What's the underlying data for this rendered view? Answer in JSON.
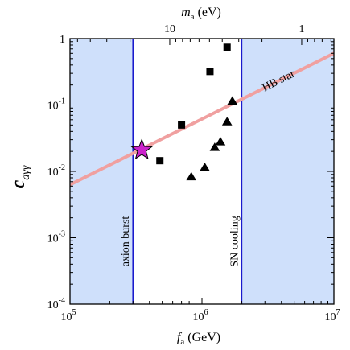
{
  "chart_data": {
    "type": "scatter",
    "x_axis": {
      "label_italic": "f",
      "label_sub": "a",
      "label_unit": " (GeV)",
      "scale": "log",
      "range": [
        100000,
        10000000
      ],
      "ticks": [
        {
          "value": 100000,
          "base": "10",
          "exp": "5"
        },
        {
          "value": 1000000,
          "base": "10",
          "exp": "6"
        },
        {
          "value": 10000000,
          "base": "10",
          "exp": "7"
        }
      ]
    },
    "top_axis": {
      "label_italic": "m",
      "label_sub": "a",
      "label_unit": " (eV)",
      "scale": "log",
      "relation": "m_a (eV) = 5.7e6 / f_a (GeV)",
      "ticks": [
        {
          "value": 10,
          "label": "10"
        },
        {
          "value": 1,
          "label": "1"
        }
      ]
    },
    "y_axis": {
      "label_italic": "c",
      "label_sub": "aγγ",
      "scale": "log",
      "range": [
        0.0001,
        1
      ],
      "ticks": [
        {
          "value": 0.0001,
          "base": "10",
          "exp": "-4"
        },
        {
          "value": 0.001,
          "base": "10",
          "exp": "-3"
        },
        {
          "value": 0.01,
          "base": "10",
          "exp": "-2"
        },
        {
          "value": 0.1,
          "base": "10",
          "exp": "-1"
        },
        {
          "value": 1,
          "base": "1",
          "exp": ""
        }
      ]
    },
    "excluded_regions": [
      {
        "x_range": [
          100000,
          300000
        ],
        "color": "#cfe0fb",
        "label": "axion burst",
        "line_color": "#1a1acc"
      },
      {
        "x_range": [
          2000000,
          10000000
        ],
        "color": "#cfe0fb",
        "label": "SN cooling",
        "line_color": "#1a1acc"
      }
    ],
    "bound_line": {
      "label": "HB star",
      "color": "#f0a0a0",
      "points": [
        [
          100000,
          0.0063
        ],
        [
          10000000,
          0.6
        ]
      ]
    },
    "series": [
      {
        "marker": "square",
        "color": "#000000",
        "points": [
          [
            480000,
            0.0145
          ],
          [
            700000,
            0.05
          ],
          [
            1150000,
            0.32
          ],
          [
            1550000,
            0.74
          ]
        ]
      },
      {
        "marker": "triangle",
        "color": "#000000",
        "points": [
          [
            830000,
            0.0083
          ],
          [
            1050000,
            0.0115
          ],
          [
            1250000,
            0.023
          ],
          [
            1380000,
            0.028
          ],
          [
            1550000,
            0.056
          ],
          [
            1700000,
            0.115
          ]
        ]
      },
      {
        "marker": "star",
        "color": "#cc22cc",
        "points": [
          [
            350000,
            0.021
          ]
        ]
      }
    ]
  }
}
